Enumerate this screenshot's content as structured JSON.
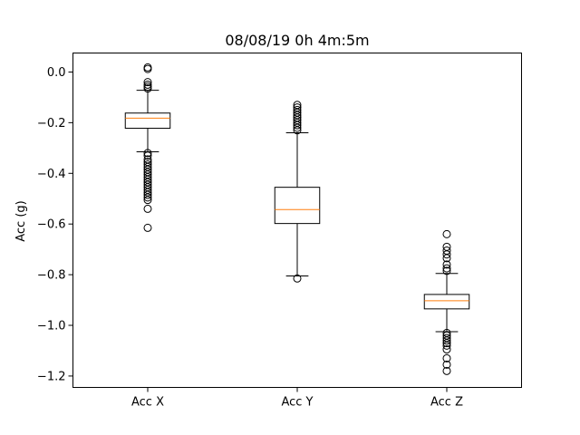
{
  "chart_data": {
    "type": "box",
    "title": "08/08/19 0h 4m:5m",
    "xlabel": "",
    "ylabel": "Acc (g)",
    "ylim": [
      -1.245,
      0.075
    ],
    "yticks": [
      0.0,
      -0.2,
      -0.4,
      -0.6,
      -0.8,
      -1.0,
      -1.2
    ],
    "ytick_labels": [
      "0.0",
      "−0.2",
      "−0.4",
      "−0.6",
      "−0.8",
      "−1.0",
      "−1.2"
    ],
    "grid": false,
    "box_color": "#000000",
    "median_color": "#ff7f0e",
    "categories": [
      "Acc X",
      "Acc Y",
      "Acc Z"
    ],
    "boxes": [
      {
        "label": "Acc X",
        "whisker_low": -0.315,
        "q1": -0.222,
        "median": -0.182,
        "q3": -0.162,
        "whisker_high": -0.072,
        "outliers": [
          0.018,
          0.012,
          -0.04,
          -0.05,
          -0.058,
          -0.065,
          -0.32,
          -0.33,
          -0.345,
          -0.355,
          -0.365,
          -0.375,
          -0.385,
          -0.395,
          -0.405,
          -0.415,
          -0.425,
          -0.435,
          -0.445,
          -0.455,
          -0.465,
          -0.475,
          -0.485,
          -0.495,
          -0.505,
          -0.54,
          -0.615
        ]
      },
      {
        "label": "Acc Y",
        "whisker_low": -0.805,
        "q1": -0.598,
        "median": -0.543,
        "q3": -0.455,
        "whisker_high": -0.24,
        "outliers": [
          -0.13,
          -0.14,
          -0.15,
          -0.16,
          -0.17,
          -0.18,
          -0.19,
          -0.2,
          -0.21,
          -0.22,
          -0.23,
          -0.815
        ]
      },
      {
        "label": "Acc Z",
        "whisker_low": -1.025,
        "q1": -0.935,
        "median": -0.903,
        "q3": -0.878,
        "whisker_high": -0.795,
        "outliers": [
          -0.64,
          -0.69,
          -0.705,
          -0.72,
          -0.735,
          -0.76,
          -0.775,
          -0.785,
          -1.03,
          -1.04,
          -1.05,
          -1.06,
          -1.07,
          -1.08,
          -1.095,
          -1.13,
          -1.155,
          -1.18
        ]
      }
    ]
  }
}
